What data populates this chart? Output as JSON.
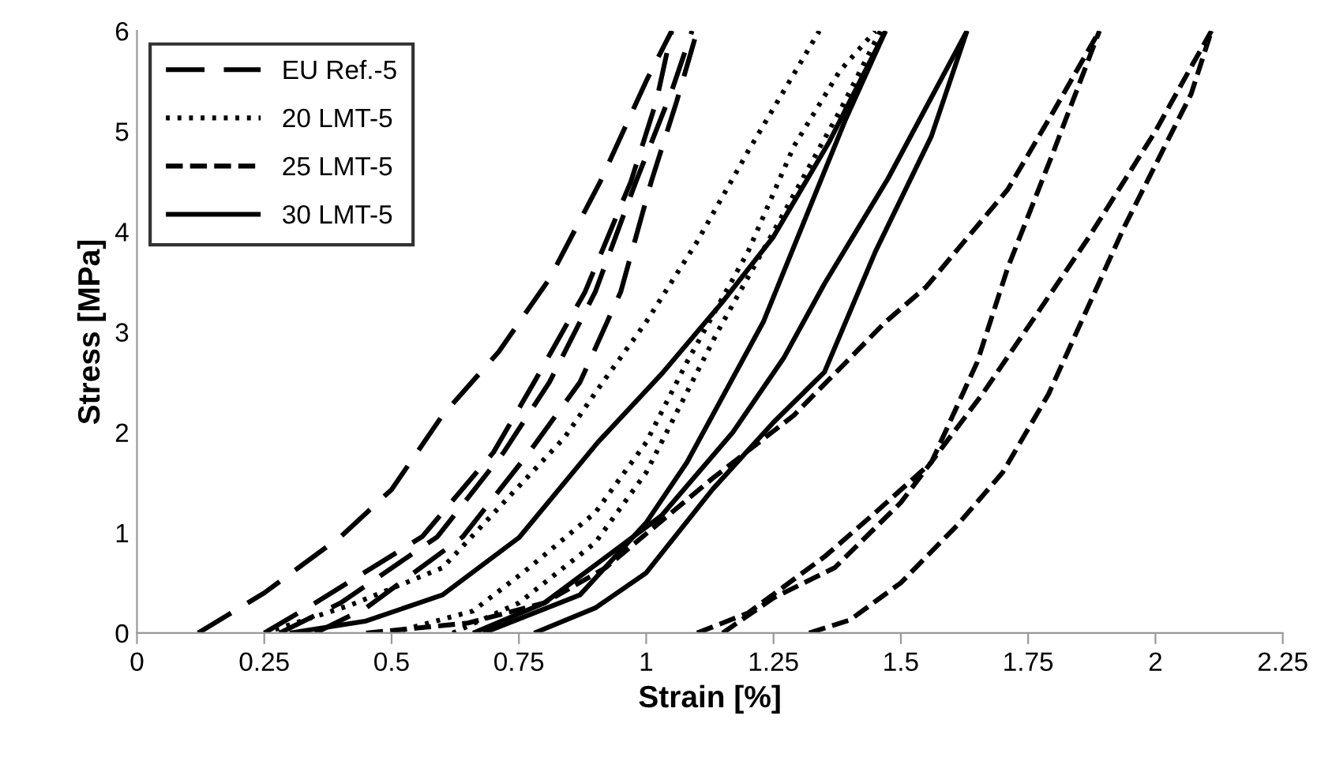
{
  "chart_data": {
    "type": "line",
    "xlabel": "Strain [%]",
    "ylabel": "Stress [MPa]",
    "xlim": [
      0,
      2.25
    ],
    "xticks": [
      0,
      0.25,
      0.5,
      0.75,
      1,
      1.25,
      1.5,
      1.75,
      2,
      2.25
    ],
    "ylim": [
      0,
      6
    ],
    "yticks": [
      0,
      1,
      2,
      3,
      4,
      5,
      6
    ],
    "grid": false,
    "legend": "top left",
    "marker": "none",
    "series": [
      {
        "name": "EU Ref.-5",
        "color": "#000000",
        "line_style": "longdashed",
        "x": [
          0.12,
          0.25,
          0.4,
          0.5,
          0.6,
          0.71,
          0.81,
          0.91,
          1.0,
          1.05
        ],
        "values": [
          0,
          0.4,
          0.96,
          1.43,
          2.17,
          2.8,
          3.53,
          4.5,
          5.5,
          6
        ]
      },
      {
        "color": "#000000",
        "line_style": "longdashed",
        "x": [
          0.25,
          0.35,
          0.56,
          0.7,
          0.78,
          0.88,
          0.97,
          1.02,
          1.05
        ],
        "values": [
          0,
          0.3,
          0.96,
          1.8,
          2.5,
          3.4,
          4.5,
          5.3,
          6
        ]
      },
      {
        "color": "#000000",
        "line_style": "longdashed",
        "x": [
          0.28,
          0.4,
          0.59,
          0.72,
          0.81,
          0.9,
          0.98,
          1.05,
          1.09
        ],
        "values": [
          0,
          0.3,
          0.96,
          1.8,
          2.5,
          3.4,
          4.5,
          5.4,
          6
        ]
      },
      {
        "color": "#000000",
        "line_style": "longdashed",
        "x": [
          0.35,
          0.45,
          0.64,
          0.77,
          0.87,
          0.95,
          1.01,
          1.06,
          1.1
        ],
        "values": [
          0,
          0.25,
          0.96,
          1.8,
          2.5,
          3.4,
          4.5,
          5.3,
          6
        ]
      },
      {
        "name": "20 LMT-5",
        "color": "#000000",
        "line_style": "dotted",
        "x": [
          0.25,
          0.42,
          0.6,
          0.84,
          0.905,
          1.0,
          1.1,
          1.2,
          1.34
        ],
        "values": [
          0,
          0.28,
          0.65,
          1.95,
          2.43,
          3.1,
          3.9,
          4.8,
          6
        ]
      },
      {
        "color": "#000000",
        "line_style": "dotted",
        "x": [
          0.5,
          0.66,
          0.77,
          0.9,
          1.0,
          1.08,
          1.2,
          1.29,
          1.38,
          1.45
        ],
        "values": [
          0,
          0.22,
          0.65,
          1.2,
          1.9,
          2.7,
          3.8,
          4.85,
          5.6,
          6
        ]
      },
      {
        "color": "#000000",
        "line_style": "dotted",
        "x": [
          0.62,
          0.75,
          0.9,
          1.0,
          1.14,
          1.25,
          1.38,
          1.46
        ],
        "values": [
          0,
          0.3,
          0.9,
          1.6,
          3.0,
          4.0,
          5.2,
          6
        ]
      },
      {
        "name": "25 LMT-5",
        "color": "#000000",
        "line_style": "dashed",
        "x": [
          0.45,
          0.65,
          0.8,
          0.92,
          1.13,
          1.29,
          1.47,
          1.55,
          1.71,
          1.8,
          1.89
        ],
        "values": [
          0,
          0.1,
          0.3,
          0.65,
          1.54,
          2.17,
          3.1,
          3.45,
          4.42,
          5.2,
          6
        ]
      },
      {
        "color": "#000000",
        "line_style": "dashed",
        "x": [
          1.1,
          1.2,
          1.35,
          1.45,
          1.56,
          1.65,
          1.71,
          1.8,
          1.89
        ],
        "values": [
          0,
          0.2,
          0.76,
          1.2,
          1.7,
          2.7,
          3.64,
          4.8,
          6
        ]
      },
      {
        "color": "#000000",
        "line_style": "dashed",
        "x": [
          1.15,
          1.25,
          1.37,
          1.5,
          1.66,
          1.77,
          1.87,
          2.0,
          2.07,
          2.11
        ],
        "values": [
          0,
          0.35,
          0.65,
          1.3,
          2.38,
          3.2,
          3.95,
          5.0,
          5.64,
          6
        ]
      },
      {
        "color": "#000000",
        "line_style": "dashed",
        "x": [
          1.32,
          1.4,
          1.5,
          1.61,
          1.7,
          1.79,
          1.94,
          2.07,
          2.11
        ],
        "values": [
          0,
          0.13,
          0.5,
          1.07,
          1.6,
          2.38,
          4.06,
          5.37,
          6
        ]
      },
      {
        "name": "30 LMT-5",
        "color": "#000000",
        "line_style": "solid",
        "x": [
          0.3,
          0.45,
          0.6,
          0.75,
          0.905,
          1.03,
          1.15,
          1.25,
          1.36,
          1.47
        ],
        "values": [
          0,
          0.12,
          0.38,
          0.95,
          1.9,
          2.58,
          3.3,
          3.95,
          4.9,
          6
        ]
      },
      {
        "color": "#000000",
        "line_style": "solid",
        "x": [
          0.68,
          0.87,
          1.0,
          1.08,
          1.23,
          1.39,
          1.47
        ],
        "values": [
          0,
          0.38,
          1.1,
          1.7,
          3.1,
          5.1,
          6
        ]
      },
      {
        "color": "#000000",
        "line_style": "solid",
        "x": [
          0.66,
          0.8,
          1.03,
          1.17,
          1.27,
          1.35,
          1.475,
          1.63
        ],
        "values": [
          0,
          0.3,
          1.17,
          2.0,
          2.74,
          3.48,
          4.53,
          6
        ]
      },
      {
        "color": "#000000",
        "line_style": "solid",
        "x": [
          0.78,
          0.9,
          1.0,
          1.13,
          1.25,
          1.35,
          1.45,
          1.56,
          1.63
        ],
        "values": [
          0,
          0.25,
          0.6,
          1.43,
          2.1,
          2.6,
          3.8,
          4.95,
          6
        ]
      }
    ]
  }
}
